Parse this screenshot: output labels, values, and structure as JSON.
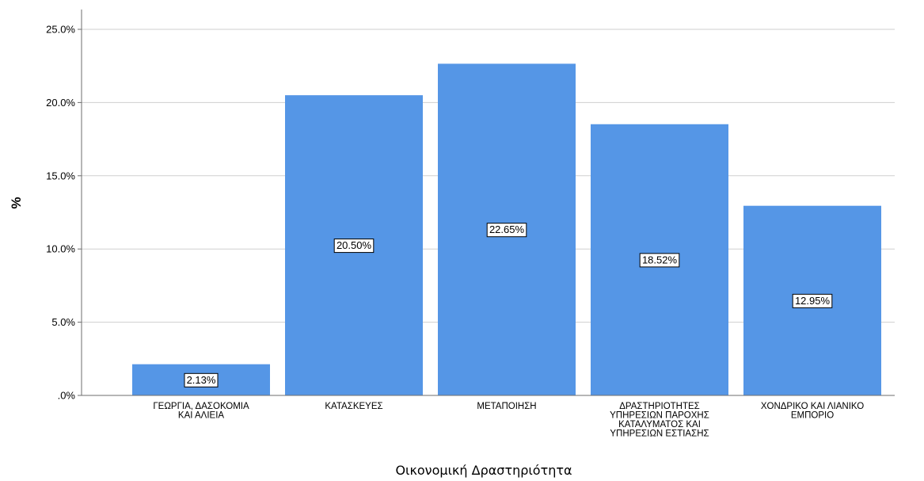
{
  "chart_data": {
    "type": "bar",
    "categories": [
      [
        "ΓΕΩΡΓΙΑ, ΔΑΣΟΚΟΜΙΑ",
        "ΚΑΙ ΑΛΙΕΙΑ"
      ],
      [
        "ΚΑΤΑΣΚΕΥΕΣ"
      ],
      [
        "ΜΕΤΑΠΟΙΗΣΗ"
      ],
      [
        "ΔΡΑΣΤΗΡΙΟΤΗΤΕΣ",
        "ΥΠΗΡΕΣΙΩΝ ΠΑΡΟΧΗΣ",
        "ΚΑΤΑΛΥΜΑΤΟΣ ΚΑΙ",
        "ΥΠΗΡΕΣΙΩΝ ΕΣΤΙΑΣΗΣ"
      ],
      [
        "ΧΟΝΔΡΙΚΟ ΚΑΙ ΛΙΑΝΙΚΟ",
        "ΕΜΠΟΡΙΟ"
      ]
    ],
    "values": [
      2.13,
      20.5,
      22.65,
      18.52,
      12.95
    ],
    "data_labels": [
      "2.13%",
      "20.50%",
      "22.65%",
      "18.52%",
      "12.95%"
    ],
    "xlabel": "Οικονομική  Δραστηριότητα",
    "ylabel": "%",
    "ylim": [
      0,
      25
    ],
    "yticks": [
      0,
      5,
      10,
      15,
      20,
      25
    ],
    "ytick_labels": [
      ".0%",
      "5.0%",
      "10.0%",
      "15.0%",
      "20.0%",
      "25.0%"
    ],
    "grid": true,
    "bar_color": "#5596e6",
    "grid_color": "#cfcfcf"
  }
}
